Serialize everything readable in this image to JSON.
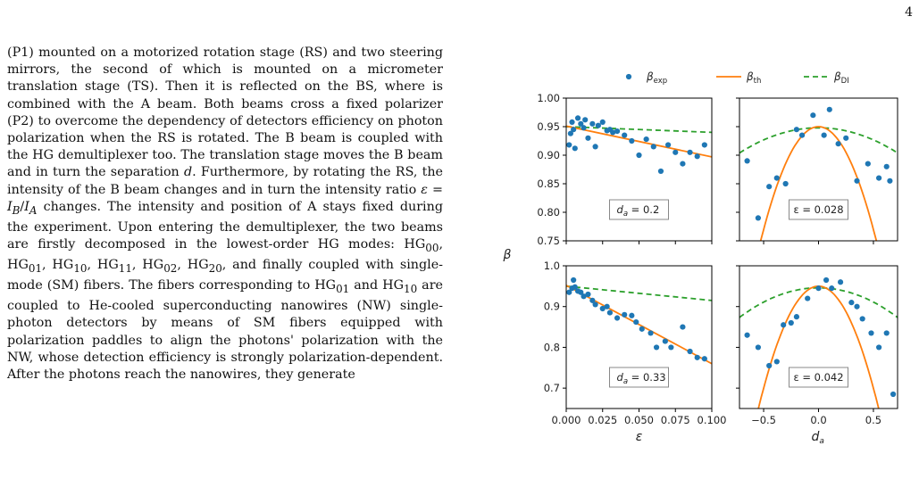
{
  "page_number": "4",
  "body_text": "(P1) mounted on a motorized rotation stage (RS) and two steering mirrors, the second of which is mounted on a micrometer translation stage (TS). Then it is reflected on the BS, where is combined with the A beam. Both beams cross a fixed polarizer (P2) to overcome the dependency of detectors efficiency on photon polarization when the RS is rotated. The B beam is coupled with the HG demultiplexer too. The translation stage moves the B beam and in turn the separation d. Furthermore, by rotating the RS, the intensity of the B beam changes and in turn the intensity ratio ε = I_B/I_A changes. The intensity and position of A stays fixed during the experiment. Upon entering the demultiplexer, the two beams are firstly decomposed in the lowest-order HG modes: HG00, HG01, HG10, HG11, HG02, HG20, and finally coupled with single-mode (SM) fibers. The fibers corresponding to HG01 and HG10 are coupled to He-cooled superconducting nanowires (NW) single-photon detectors by means of SM fibers equipped with polarization paddles to align the photons' polarization with the NW, whose detection efficiency is strongly polarization-dependent. After the photons reach the nanowires, they generate",
  "chart_data": [
    {
      "type": "scatter",
      "panel": "top-left",
      "annotation": "d_a = 0.2",
      "x": [
        0.002,
        0.003,
        0.004,
        0.005,
        0.006,
        0.008,
        0.01,
        0.012,
        0.013,
        0.015,
        0.018,
        0.02,
        0.022,
        0.025,
        0.028,
        0.03,
        0.032,
        0.035,
        0.04,
        0.045,
        0.05,
        0.055,
        0.06,
        0.065,
        0.07,
        0.075,
        0.08,
        0.085,
        0.09,
        0.095
      ],
      "values": [
        0.918,
        0.938,
        0.958,
        0.945,
        0.912,
        0.965,
        0.955,
        0.948,
        0.962,
        0.93,
        0.955,
        0.915,
        0.952,
        0.958,
        0.943,
        0.945,
        0.94,
        0.942,
        0.935,
        0.925,
        0.9,
        0.928,
        0.915,
        0.872,
        0.918,
        0.905,
        0.885,
        0.905,
        0.898,
        0.918
      ],
      "fits": {
        "th": [
          0.951,
          0.897
        ],
        "DI": [
          0.95,
          0.94
        ]
      },
      "ylim": [
        0.75,
        1.0
      ],
      "yticks": [
        "0.75",
        "0.80",
        "0.85",
        "0.90",
        "0.95",
        "1.00"
      ],
      "xlim": [
        0.0,
        0.1
      ]
    },
    {
      "type": "scatter",
      "panel": "top-right",
      "annotation": "ε = 0.028",
      "x": [
        -0.65,
        -0.55,
        -0.45,
        -0.38,
        -0.3,
        -0.2,
        -0.15,
        -0.05,
        0.05,
        0.1,
        0.18,
        0.25,
        0.35,
        0.45,
        0.55,
        0.62,
        0.65
      ],
      "values": [
        0.89,
        0.79,
        0.845,
        0.86,
        0.85,
        0.945,
        0.935,
        0.97,
        0.935,
        0.98,
        0.92,
        0.93,
        0.855,
        0.885,
        0.86,
        0.88,
        0.855
      ],
      "fits": {
        "th": "0.95 - 0.72*da^2",
        "DI": "0.948 - 0.085*da^2"
      },
      "ylim": [
        0.75,
        1.0
      ],
      "xlim": [
        -0.72,
        0.72
      ]
    },
    {
      "type": "scatter",
      "panel": "bottom-left",
      "annotation": "d_a = 0.33",
      "x": [
        0.002,
        0.004,
        0.005,
        0.006,
        0.008,
        0.01,
        0.012,
        0.015,
        0.018,
        0.02,
        0.025,
        0.028,
        0.03,
        0.035,
        0.04,
        0.045,
        0.048,
        0.052,
        0.058,
        0.062,
        0.068,
        0.072,
        0.08,
        0.085,
        0.09,
        0.095
      ],
      "values": [
        0.935,
        0.945,
        0.965,
        0.948,
        0.938,
        0.935,
        0.925,
        0.93,
        0.915,
        0.905,
        0.895,
        0.9,
        0.885,
        0.872,
        0.88,
        0.878,
        0.862,
        0.845,
        0.835,
        0.8,
        0.815,
        0.8,
        0.85,
        0.79,
        0.775,
        0.772
      ],
      "fits": {
        "th": [
          0.952,
          0.76
        ],
        "DI": [
          0.95,
          0.915
        ]
      },
      "ylim": [
        0.65,
        1.0
      ],
      "yticks": [
        "0.7",
        "0.8",
        "0.9",
        "1.0"
      ],
      "xlim": [
        0.0,
        0.1
      ],
      "xticks": [
        "0.000",
        "0.025",
        "0.050",
        "0.075",
        "0.100"
      ],
      "xlabel": "ε"
    },
    {
      "type": "scatter",
      "panel": "bottom-right",
      "annotation": "ε = 0.042",
      "x": [
        -0.65,
        -0.55,
        -0.45,
        -0.38,
        -0.32,
        -0.25,
        -0.2,
        -0.1,
        0.0,
        0.07,
        0.12,
        0.2,
        0.3,
        0.35,
        0.4,
        0.48,
        0.55,
        0.62,
        0.68
      ],
      "values": [
        0.83,
        0.8,
        0.755,
        0.765,
        0.855,
        0.86,
        0.875,
        0.92,
        0.945,
        0.965,
        0.945,
        0.96,
        0.91,
        0.9,
        0.87,
        0.835,
        0.8,
        0.835,
        0.685
      ],
      "fits": {
        "th": "0.95 - 1.0*da^2",
        "DI": "0.946 - 0.14*da^2"
      },
      "ylim": [
        0.65,
        1.0
      ],
      "xlim": [
        -0.72,
        0.72
      ],
      "xticks": [
        "−0.5",
        "0.0",
        "0.5"
      ],
      "xlabel": "d_a"
    }
  ],
  "ylabel": "β",
  "legend": [
    {
      "label": "β_exp",
      "color": "#1f77b4",
      "style": "marker"
    },
    {
      "label": "β_th",
      "color": "#ff7f0e",
      "style": "solid"
    },
    {
      "label": "β_DI",
      "color": "#2ca02c",
      "style": "dashed"
    }
  ]
}
